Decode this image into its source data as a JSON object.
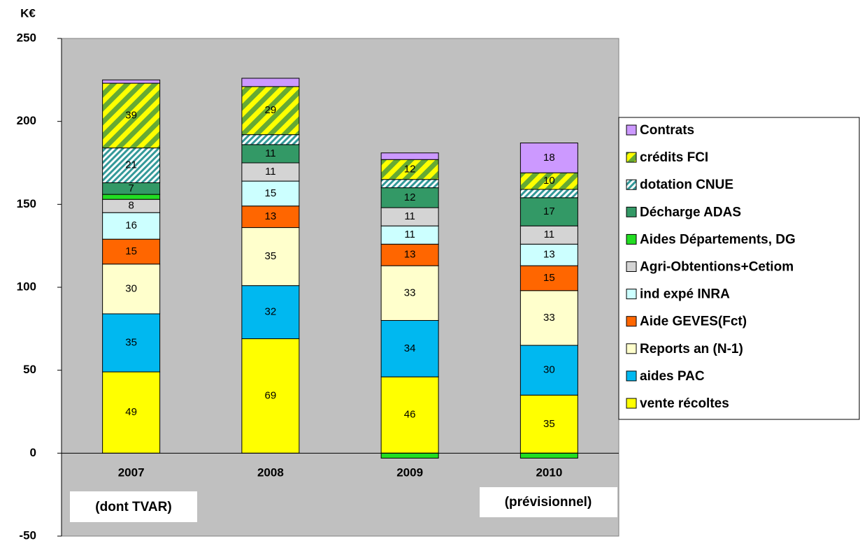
{
  "chart_data": {
    "type": "stacked_bar",
    "unit_label": "K€",
    "categories": [
      "2007",
      "2008",
      "2009",
      "2010"
    ],
    "annotations": [
      "(dont TVAR)",
      "(prévisionnel)"
    ],
    "ylim": [
      -50,
      250
    ],
    "yticks": [
      -50,
      0,
      50,
      100,
      150,
      200,
      250
    ],
    "legend": "right",
    "background": "#c0c0c0",
    "series": [
      {
        "name": "vente récoltes",
        "color": "#ffff00",
        "values": [
          49,
          69,
          46,
          35
        ]
      },
      {
        "name": "aides PAC",
        "color": "#00b8f0",
        "values": [
          35,
          32,
          34,
          30
        ]
      },
      {
        "name": "Reports  an (N-1)",
        "color": "#ffffcc",
        "values": [
          30,
          35,
          33,
          33
        ]
      },
      {
        "name": "Aide GEVES(Fct)",
        "color": "#ff6600",
        "values": [
          15,
          13,
          13,
          15
        ]
      },
      {
        "name": "ind expé INRA",
        "color": "#ccffff",
        "values": [
          16,
          15,
          11,
          13
        ]
      },
      {
        "name": "Agri-Obtentions+Cetiom",
        "color": "#d4d4d4",
        "values": [
          8,
          11,
          11,
          11
        ]
      },
      {
        "name": "Aides Départements, DG",
        "color": "#22dd22",
        "values": [
          3,
          0,
          -3,
          -3
        ]
      },
      {
        "name": "Décharge ADAS",
        "color": "#339966",
        "values": [
          7,
          11,
          12,
          17
        ]
      },
      {
        "name": "dotation CNUE",
        "color": "#339999",
        "hatch_color": "#ffffff",
        "values": [
          21,
          6,
          5,
          5
        ]
      },
      {
        "name": "crédits FCI",
        "color": "#ffff00",
        "hatch_color": "#66aa33",
        "values": [
          39,
          29,
          12,
          10
        ]
      },
      {
        "name": "Contrats",
        "color": "#cc99ff",
        "values": [
          2,
          5,
          4,
          18
        ]
      }
    ]
  }
}
